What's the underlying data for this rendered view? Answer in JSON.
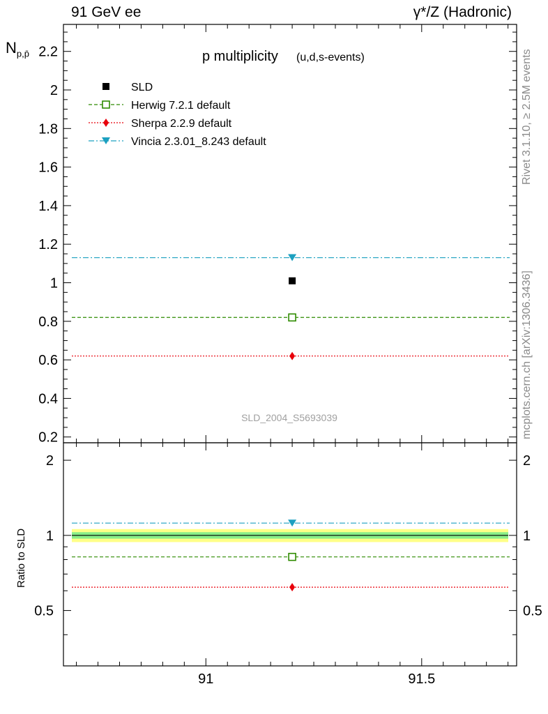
{
  "header": {
    "left": "91 GeV ee",
    "right": "γ*/Z (Hadronic)"
  },
  "side_text": {
    "rivet": "Rivet 3.1.10, ≥ 2.5M events",
    "mcplots": "mcplots.cern.ch [arXiv:1306.3436]"
  },
  "chart_data": [
    {
      "type": "scatter",
      "title": "p multiplicity",
      "subtitle": "(u,d,s-events)",
      "ylabel": "N",
      "ylabel_sub": "p,p̄",
      "watermark": "SLD_2004_S5693039",
      "xlim": [
        90.67,
        91.72
      ],
      "ylim": [
        0.17,
        2.34
      ],
      "x_ticks": [
        91,
        91.5
      ],
      "x_tick_labels": [
        "91",
        "91.5"
      ],
      "y_ticks": [
        0.2,
        0.4,
        0.6,
        0.8,
        1,
        1.2,
        1.4,
        1.6,
        1.8,
        2,
        2.2
      ],
      "y_tick_labels": [
        "0.2",
        "0.4",
        "0.6",
        "0.8",
        "1",
        "1.2",
        "1.4",
        "1.6",
        "1.8",
        "2",
        "2.2"
      ],
      "legend_position": "top-left",
      "series": [
        {
          "name": "SLD",
          "x": [
            91.2
          ],
          "y": [
            1.01
          ],
          "color": "#000000",
          "marker": "filled-square",
          "style": "points"
        },
        {
          "name": "Herwig 7.2.1 default",
          "x": [
            91.2
          ],
          "y": [
            0.82
          ],
          "color": "#2e8b00",
          "marker": "open-square",
          "style": "dashed"
        },
        {
          "name": "Sherpa 2.2.9 default",
          "x": [
            91.2
          ],
          "y": [
            0.62
          ],
          "color": "#e8000b",
          "marker": "diamond",
          "style": "dotted"
        },
        {
          "name": "Vincia 2.3.01_8.243 default",
          "x": [
            91.2
          ],
          "y": [
            1.13
          ],
          "color": "#1ca0c0",
          "marker": "triangle-down",
          "style": "dashdot"
        }
      ]
    },
    {
      "type": "scatter",
      "title": "",
      "ylabel": "Ratio to SLD",
      "xlim": [
        90.67,
        91.72
      ],
      "ylim": [
        0.3,
        2.35
      ],
      "y_ticks": [
        0.5,
        1,
        2
      ],
      "y_tick_labels": [
        "0.5",
        "1",
        "2"
      ],
      "x_ticks": [
        91,
        91.5
      ],
      "x_tick_labels": [
        "91",
        "91.5"
      ],
      "reference": 1,
      "uncertainty_bands": {
        "inner": [
          0.97,
          1.03
        ],
        "outer": [
          0.94,
          1.06
        ],
        "inner_color": "#88ee88",
        "outer_color": "#ffff88"
      },
      "series": [
        {
          "name": "Herwig 7.2.1 default",
          "y": [
            0.82
          ],
          "color": "#2e8b00",
          "marker": "open-square",
          "style": "dashed"
        },
        {
          "name": "Sherpa 2.2.9 default",
          "y": [
            0.62
          ],
          "color": "#e8000b",
          "marker": "diamond",
          "style": "dotted"
        },
        {
          "name": "Vincia 2.3.01_8.243 default",
          "y": [
            1.12
          ],
          "color": "#1ca0c0",
          "marker": "triangle-down",
          "style": "dashdot"
        }
      ]
    }
  ]
}
